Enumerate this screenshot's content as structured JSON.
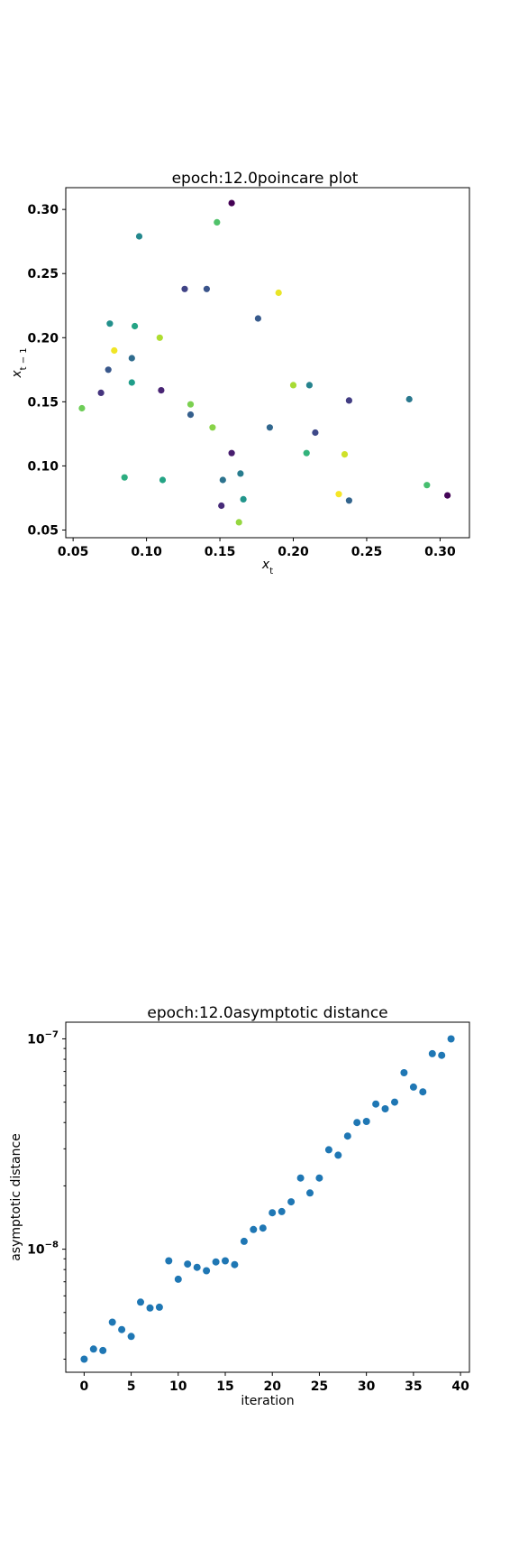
{
  "chart_data": [
    {
      "type": "scatter",
      "title": "epoch:12.0poincare plot",
      "xlabel": "x_t",
      "ylabel": "x_{t-1}",
      "xlim": [
        0.045,
        0.32
      ],
      "ylim": [
        0.044,
        0.317
      ],
      "xticks": [
        0.05,
        0.1,
        0.15,
        0.2,
        0.25,
        0.3
      ],
      "xtick_labels": [
        "0.05",
        "0.10",
        "0.15",
        "0.20",
        "0.25",
        "0.30"
      ],
      "yticks": [
        0.05,
        0.1,
        0.15,
        0.2,
        0.25,
        0.3
      ],
      "ytick_labels": [
        "0.05",
        "0.10",
        "0.15",
        "0.20",
        "0.25",
        "0.30"
      ],
      "grid": false,
      "colormap": "viridis",
      "points": [
        {
          "x": 0.158,
          "y": 0.305,
          "c": 0.0
        },
        {
          "x": 0.305,
          "y": 0.077,
          "c": 0.01
        },
        {
          "x": 0.148,
          "y": 0.29,
          "c": 0.72
        },
        {
          "x": 0.095,
          "y": 0.279,
          "c": 0.47
        },
        {
          "x": 0.126,
          "y": 0.238,
          "c": 0.2
        },
        {
          "x": 0.141,
          "y": 0.238,
          "c": 0.26
        },
        {
          "x": 0.19,
          "y": 0.235,
          "c": 0.97
        },
        {
          "x": 0.176,
          "y": 0.215,
          "c": 0.28
        },
        {
          "x": 0.075,
          "y": 0.211,
          "c": 0.5
        },
        {
          "x": 0.092,
          "y": 0.209,
          "c": 0.58
        },
        {
          "x": 0.109,
          "y": 0.2,
          "c": 0.88
        },
        {
          "x": 0.078,
          "y": 0.19,
          "c": 0.98
        },
        {
          "x": 0.09,
          "y": 0.184,
          "c": 0.35
        },
        {
          "x": 0.074,
          "y": 0.175,
          "c": 0.27
        },
        {
          "x": 0.09,
          "y": 0.165,
          "c": 0.55
        },
        {
          "x": 0.2,
          "y": 0.163,
          "c": 0.87
        },
        {
          "x": 0.211,
          "y": 0.163,
          "c": 0.45
        },
        {
          "x": 0.11,
          "y": 0.159,
          "c": 0.1
        },
        {
          "x": 0.069,
          "y": 0.157,
          "c": 0.15
        },
        {
          "x": 0.279,
          "y": 0.152,
          "c": 0.4
        },
        {
          "x": 0.238,
          "y": 0.151,
          "c": 0.18
        },
        {
          "x": 0.13,
          "y": 0.148,
          "c": 0.8
        },
        {
          "x": 0.056,
          "y": 0.145,
          "c": 0.78
        },
        {
          "x": 0.13,
          "y": 0.14,
          "c": 0.3
        },
        {
          "x": 0.145,
          "y": 0.13,
          "c": 0.82
        },
        {
          "x": 0.184,
          "y": 0.13,
          "c": 0.33
        },
        {
          "x": 0.215,
          "y": 0.126,
          "c": 0.22
        },
        {
          "x": 0.158,
          "y": 0.11,
          "c": 0.08
        },
        {
          "x": 0.209,
          "y": 0.11,
          "c": 0.65
        },
        {
          "x": 0.235,
          "y": 0.109,
          "c": 0.93
        },
        {
          "x": 0.164,
          "y": 0.094,
          "c": 0.42
        },
        {
          "x": 0.085,
          "y": 0.091,
          "c": 0.62
        },
        {
          "x": 0.111,
          "y": 0.089,
          "c": 0.58
        },
        {
          "x": 0.152,
          "y": 0.089,
          "c": 0.38
        },
        {
          "x": 0.291,
          "y": 0.085,
          "c": 0.7
        },
        {
          "x": 0.231,
          "y": 0.078,
          "c": 0.99
        },
        {
          "x": 0.166,
          "y": 0.074,
          "c": 0.52
        },
        {
          "x": 0.238,
          "y": 0.073,
          "c": 0.32
        },
        {
          "x": 0.151,
          "y": 0.069,
          "c": 0.12
        },
        {
          "x": 0.163,
          "y": 0.056,
          "c": 0.84
        }
      ]
    },
    {
      "type": "scatter",
      "title": "epoch:12.0asymptotic distance",
      "xlabel": "iteration",
      "ylabel": "asymptotic distance",
      "yscale": "log",
      "xlim": [
        -1.95,
        40.95
      ],
      "ylim": [
        2.6e-09,
        1.2e-07
      ],
      "xticks": [
        0,
        5,
        10,
        15,
        20,
        25,
        30,
        35,
        40
      ],
      "xtick_labels": [
        "0",
        "5",
        "10",
        "15",
        "20",
        "25",
        "30",
        "35",
        "40"
      ],
      "yticks_major": [
        1e-08,
        1e-07
      ],
      "ytick_base": "10",
      "ytick_exponents": [
        "−8",
        "−7"
      ],
      "grid": false,
      "color": "#1f77b4",
      "x": [
        0,
        1,
        2,
        3,
        4,
        5,
        6,
        7,
        8,
        9,
        10,
        11,
        12,
        13,
        14,
        15,
        16,
        17,
        18,
        19,
        20,
        21,
        22,
        23,
        24,
        25,
        26,
        27,
        28,
        29,
        30,
        31,
        32,
        33,
        34,
        35,
        36,
        37,
        38,
        39
      ],
      "y": [
        3e-09,
        3.35e-09,
        3.3e-09,
        4.5e-09,
        4.15e-09,
        3.85e-09,
        5.6e-09,
        5.25e-09,
        5.3e-09,
        8.8e-09,
        7.2e-09,
        8.5e-09,
        8.2e-09,
        7.9e-09,
        8.7e-09,
        8.8e-09,
        8.45e-09,
        1.09e-08,
        1.24e-08,
        1.26e-08,
        1.49e-08,
        1.51e-08,
        1.68e-08,
        2.18e-08,
        1.85e-08,
        2.18e-08,
        2.97e-08,
        2.8e-08,
        3.45e-08,
        4e-08,
        4.05e-08,
        4.9e-08,
        4.65e-08,
        5e-08,
        6.9e-08,
        5.9e-08,
        5.6e-08,
        8.5e-08,
        8.35e-08,
        1e-07
      ]
    }
  ]
}
